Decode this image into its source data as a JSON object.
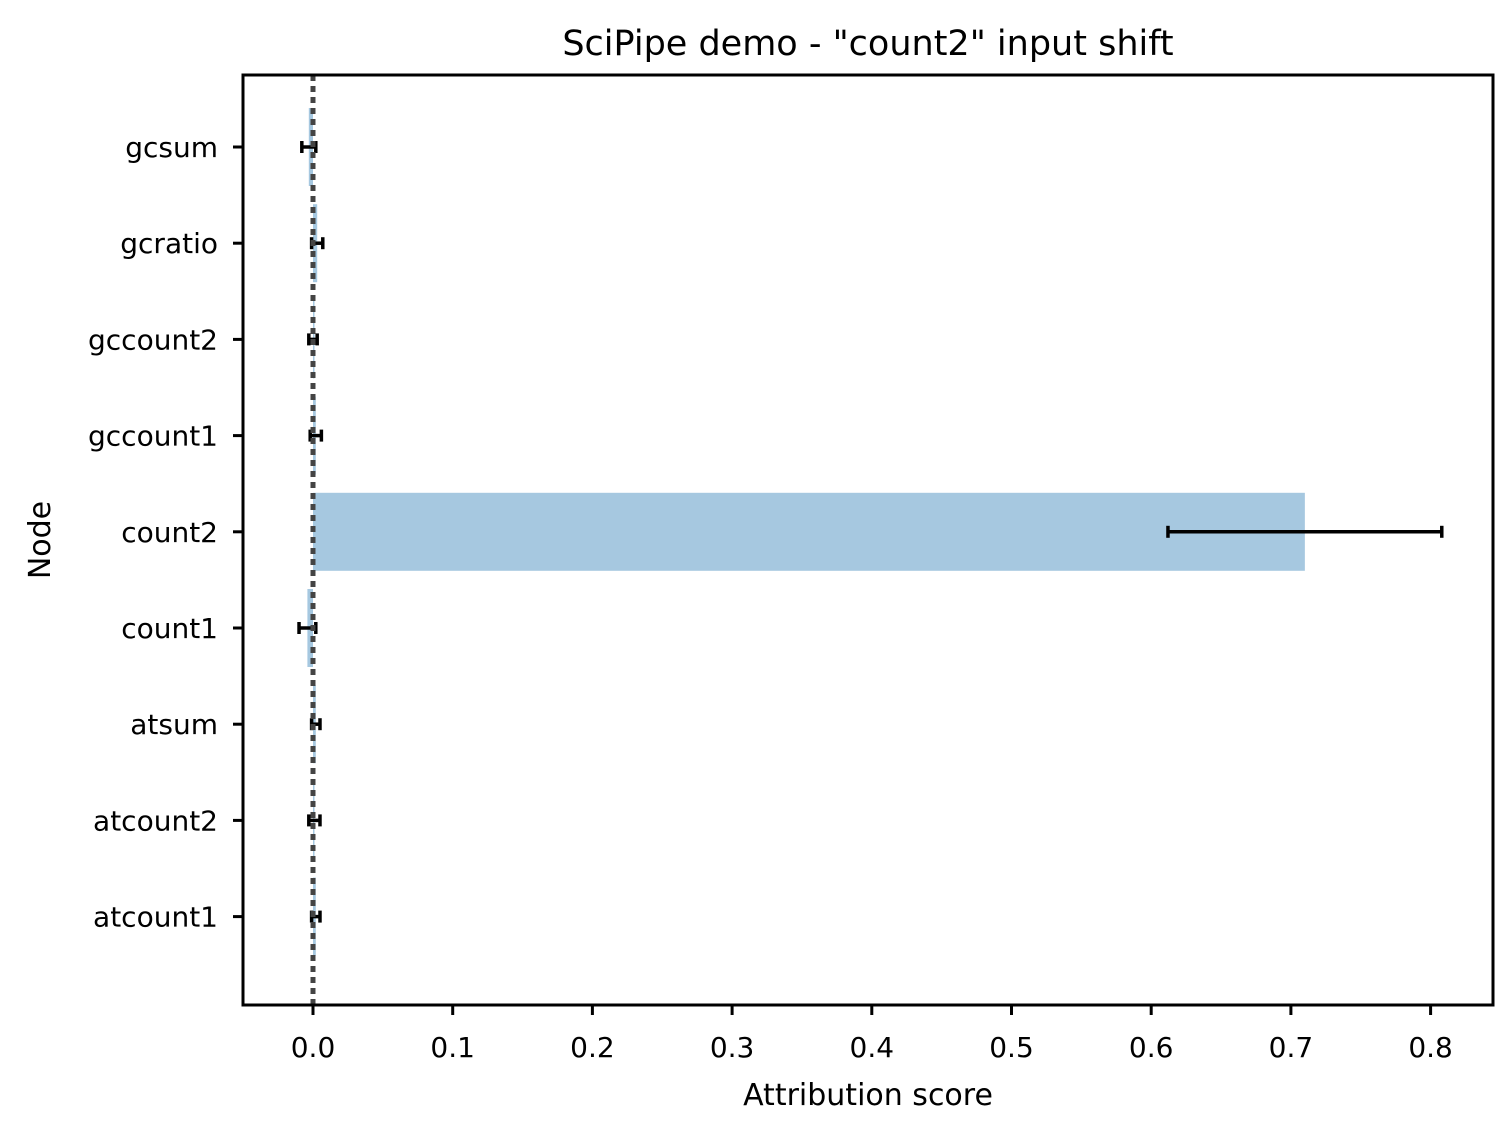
{
  "chart_data": {
    "type": "bar",
    "orientation": "horizontal",
    "title": "SciPipe demo - \"count2\" input shift",
    "xlabel": "Attribution score",
    "ylabel": "Node",
    "xlim": [
      -0.05,
      0.85
    ],
    "xticks": [
      "0.0",
      "0.1",
      "0.2",
      "0.3",
      "0.4",
      "0.5",
      "0.6",
      "0.7",
      "0.8"
    ],
    "categories": [
      "gcsum",
      "gcratio",
      "gccount2",
      "gccount1",
      "count2",
      "count1",
      "atsum",
      "atcount2",
      "atcount1"
    ],
    "values": [
      -0.003,
      0.003,
      0.0,
      0.002,
      0.71,
      -0.004,
      0.002,
      0.001,
      0.002
    ],
    "errors": [
      0.005,
      0.004,
      0.003,
      0.004,
      0.098,
      0.006,
      0.003,
      0.004,
      0.003
    ],
    "reference_line": {
      "x": 0.0,
      "style": "dotted"
    },
    "grid": false,
    "colors": {
      "bar": "#a6c8e0",
      "error": "#000000",
      "reference": "#444444"
    }
  }
}
